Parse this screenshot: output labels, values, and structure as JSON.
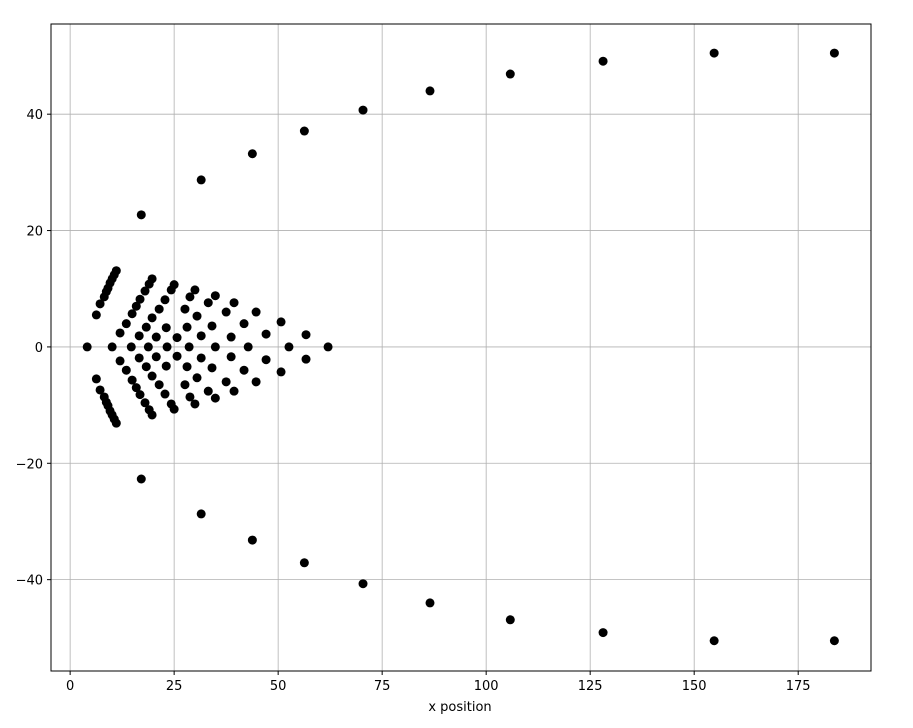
{
  "chart_data": {
    "type": "scatter",
    "xlabel": "x position",
    "x": [
      17.1,
      31.5,
      43.8,
      56.3,
      70.4,
      86.5,
      105.8,
      128.1,
      154.8,
      183.7,
      6.3,
      7.2,
      8.2,
      8.7,
      9.1,
      9.6,
      10.1,
      10.6,
      11.1,
      12.0,
      13.5,
      14.9,
      15.9,
      16.8,
      18.0,
      19.0,
      19.7,
      16.6,
      18.3,
      19.7,
      21.4,
      22.8,
      24.3,
      25.0,
      25.7,
      23.1,
      20.7,
      27.6,
      28.8,
      30.0,
      28.1,
      30.5,
      31.5,
      33.2,
      34.9,
      34.1,
      37.5,
      39.4,
      38.7,
      41.8,
      44.7,
      47.1,
      50.7,
      56.7,
      17.1,
      31.5,
      43.8,
      56.3,
      70.4,
      86.5,
      105.8,
      128.1,
      154.8,
      183.7,
      6.3,
      7.2,
      8.2,
      8.7,
      9.1,
      9.6,
      10.1,
      10.6,
      11.1,
      12.0,
      13.5,
      14.9,
      15.9,
      16.8,
      18.0,
      19.0,
      19.7,
      16.6,
      18.3,
      19.7,
      21.4,
      22.8,
      24.3,
      25.0,
      25.7,
      23.1,
      20.7,
      27.6,
      28.8,
      30.0,
      28.1,
      30.5,
      31.5,
      33.2,
      34.9,
      34.1,
      37.5,
      39.4,
      38.7,
      41.8,
      44.7,
      47.1,
      50.7,
      56.7,
      4.1,
      10.1,
      14.7,
      18.8,
      23.3,
      28.6,
      34.9,
      42.8,
      52.6,
      62.0
    ],
    "values": [
      22.7,
      28.7,
      33.2,
      37.1,
      40.7,
      44.0,
      46.9,
      49.1,
      50.5,
      50.5,
      5.5,
      7.4,
      8.6,
      9.5,
      10.1,
      11.0,
      11.7,
      12.4,
      13.1,
      2.4,
      4.0,
      5.7,
      7.0,
      8.2,
      9.6,
      10.8,
      11.7,
      1.9,
      3.4,
      5.0,
      6.5,
      8.1,
      9.8,
      10.7,
      1.6,
      3.3,
      1.7,
      6.5,
      8.6,
      9.8,
      3.4,
      5.3,
      1.9,
      7.6,
      8.8,
      3.6,
      6.0,
      7.6,
      1.7,
      4.0,
      6.0,
      2.2,
      4.3,
      2.1,
      -22.7,
      -28.7,
      -33.2,
      -37.1,
      -40.7,
      -44.0,
      -46.9,
      -49.1,
      -50.5,
      -50.5,
      -5.5,
      -7.4,
      -8.6,
      -9.5,
      -10.1,
      -11.0,
      -11.7,
      -12.4,
      -13.1,
      -2.4,
      -4.0,
      -5.7,
      -7.0,
      -8.2,
      -9.6,
      -10.8,
      -11.7,
      -1.9,
      -3.4,
      -5.0,
      -6.5,
      -8.1,
      -9.8,
      -10.7,
      -1.6,
      -3.3,
      -1.7,
      -6.5,
      -8.6,
      -9.8,
      -3.4,
      -5.3,
      -1.9,
      -7.6,
      -8.8,
      -3.6,
      -6.0,
      -7.6,
      -1.7,
      -4.0,
      -6.0,
      -2.2,
      -4.3,
      -2.1,
      0,
      0,
      0,
      0,
      0,
      0,
      0,
      0,
      0,
      0
    ],
    "color": "#000000",
    "xlim": [
      -4.6,
      192.5
    ],
    "xticks": [
      0,
      25,
      50,
      75,
      100,
      125,
      150,
      175
    ],
    "ylim": [
      -55.7,
      55.5
    ],
    "yticks": [
      {
        "value": -40,
        "label": "−40"
      },
      {
        "value": -20,
        "label": "−20"
      },
      0,
      20,
      40
    ],
    "grid": true
  }
}
